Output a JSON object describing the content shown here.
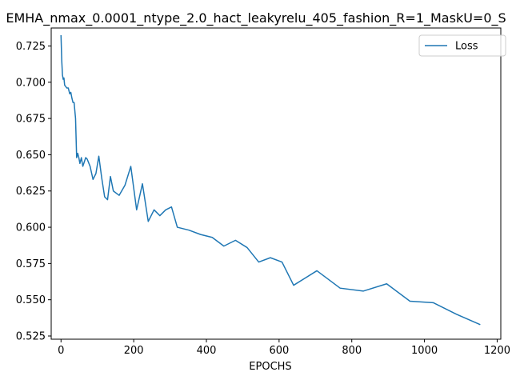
{
  "chart_data": {
    "type": "line",
    "title": "EMHA_nmax_0.0001_ntype_2.0_hact_leakyrelu_405_fashion_R=1_MaskU=0_S",
    "xlabel": "EPOCHS",
    "ylabel": "",
    "xlim": [
      -27,
      1210
    ],
    "ylim": [
      0.5228,
      0.7374
    ],
    "xticks": [
      0,
      200,
      400,
      600,
      800,
      1000,
      1200
    ],
    "yticks": [
      0.525,
      0.55,
      0.575,
      0.6,
      0.625,
      0.65,
      0.675,
      0.7,
      0.725
    ],
    "ytick_labels": [
      "0.525",
      "0.550",
      "0.575",
      "0.600",
      "0.625",
      "0.650",
      "0.675",
      "0.700",
      "0.725"
    ],
    "grid": false,
    "legend_position": "top-right",
    "series": [
      {
        "name": "Loss",
        "color": "#1f77b4",
        "x": [
          0,
          2,
          4,
          6,
          8,
          10,
          13,
          16,
          20,
          24,
          27,
          30,
          33,
          36,
          40,
          43,
          46,
          49,
          52,
          56,
          60,
          64,
          68,
          72,
          80,
          88,
          96,
          104,
          112,
          120,
          128,
          136,
          144,
          160,
          176,
          192,
          208,
          224,
          240,
          256,
          272,
          288,
          304,
          320,
          352,
          384,
          416,
          448,
          480,
          512,
          544,
          576,
          608,
          640,
          704,
          768,
          832,
          896,
          960,
          1024,
          1088,
          1152
        ],
        "y": [
          0.732,
          0.715,
          0.705,
          0.702,
          0.703,
          0.698,
          0.697,
          0.696,
          0.696,
          0.692,
          0.693,
          0.689,
          0.686,
          0.686,
          0.675,
          0.648,
          0.651,
          0.648,
          0.644,
          0.648,
          0.642,
          0.645,
          0.648,
          0.647,
          0.642,
          0.633,
          0.637,
          0.649,
          0.634,
          0.621,
          0.619,
          0.635,
          0.625,
          0.622,
          0.629,
          0.642,
          0.612,
          0.63,
          0.604,
          0.612,
          0.608,
          0.612,
          0.614,
          0.6,
          0.598,
          0.595,
          0.593,
          0.587,
          0.591,
          0.586,
          0.576,
          0.579,
          0.576,
          0.56,
          0.57,
          0.558,
          0.556,
          0.561,
          0.549,
          0.548,
          0.54,
          0.533
        ]
      }
    ]
  }
}
